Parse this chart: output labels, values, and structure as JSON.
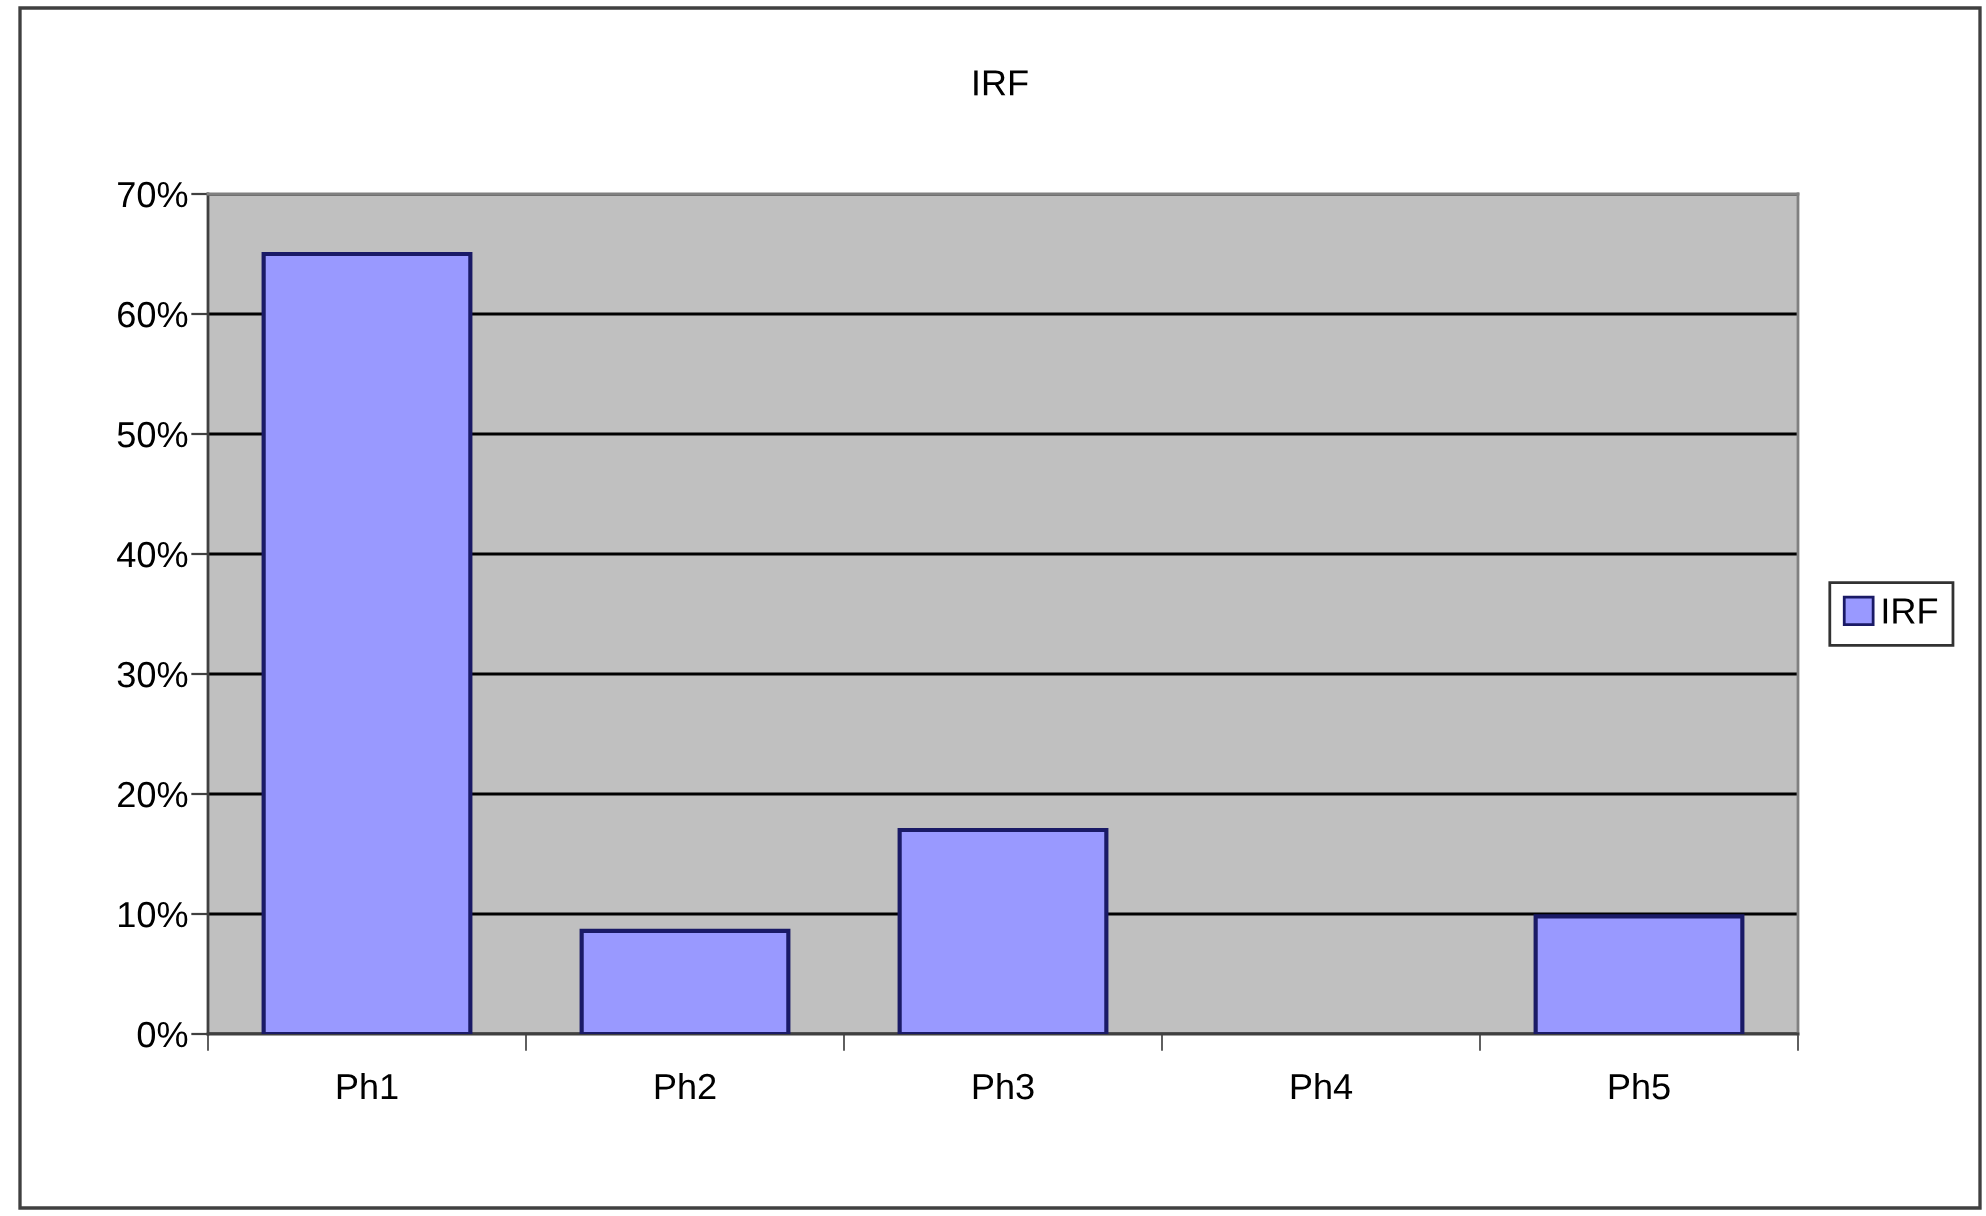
{
  "chart_data": {
    "type": "bar",
    "title": "IRF",
    "categories": [
      "Ph1",
      "Ph2",
      "Ph3",
      "Ph4",
      "Ph5"
    ],
    "series": [
      {
        "name": "IRF",
        "color": "#9999ff",
        "values": [
          65,
          8.6,
          17,
          null,
          9.8
        ]
      }
    ],
    "ylim": [
      0,
      70
    ],
    "yticks": [
      {
        "value": 0,
        "label": "0%"
      },
      {
        "value": 10,
        "label": "10%"
      },
      {
        "value": 20,
        "label": "20%"
      },
      {
        "value": 30,
        "label": "30%"
      },
      {
        "value": 40,
        "label": "40%"
      },
      {
        "value": 50,
        "label": "50%"
      },
      {
        "value": 60,
        "label": "60%"
      },
      {
        "value": 70,
        "label": "70%"
      }
    ],
    "grid": "y",
    "legend": "right"
  }
}
